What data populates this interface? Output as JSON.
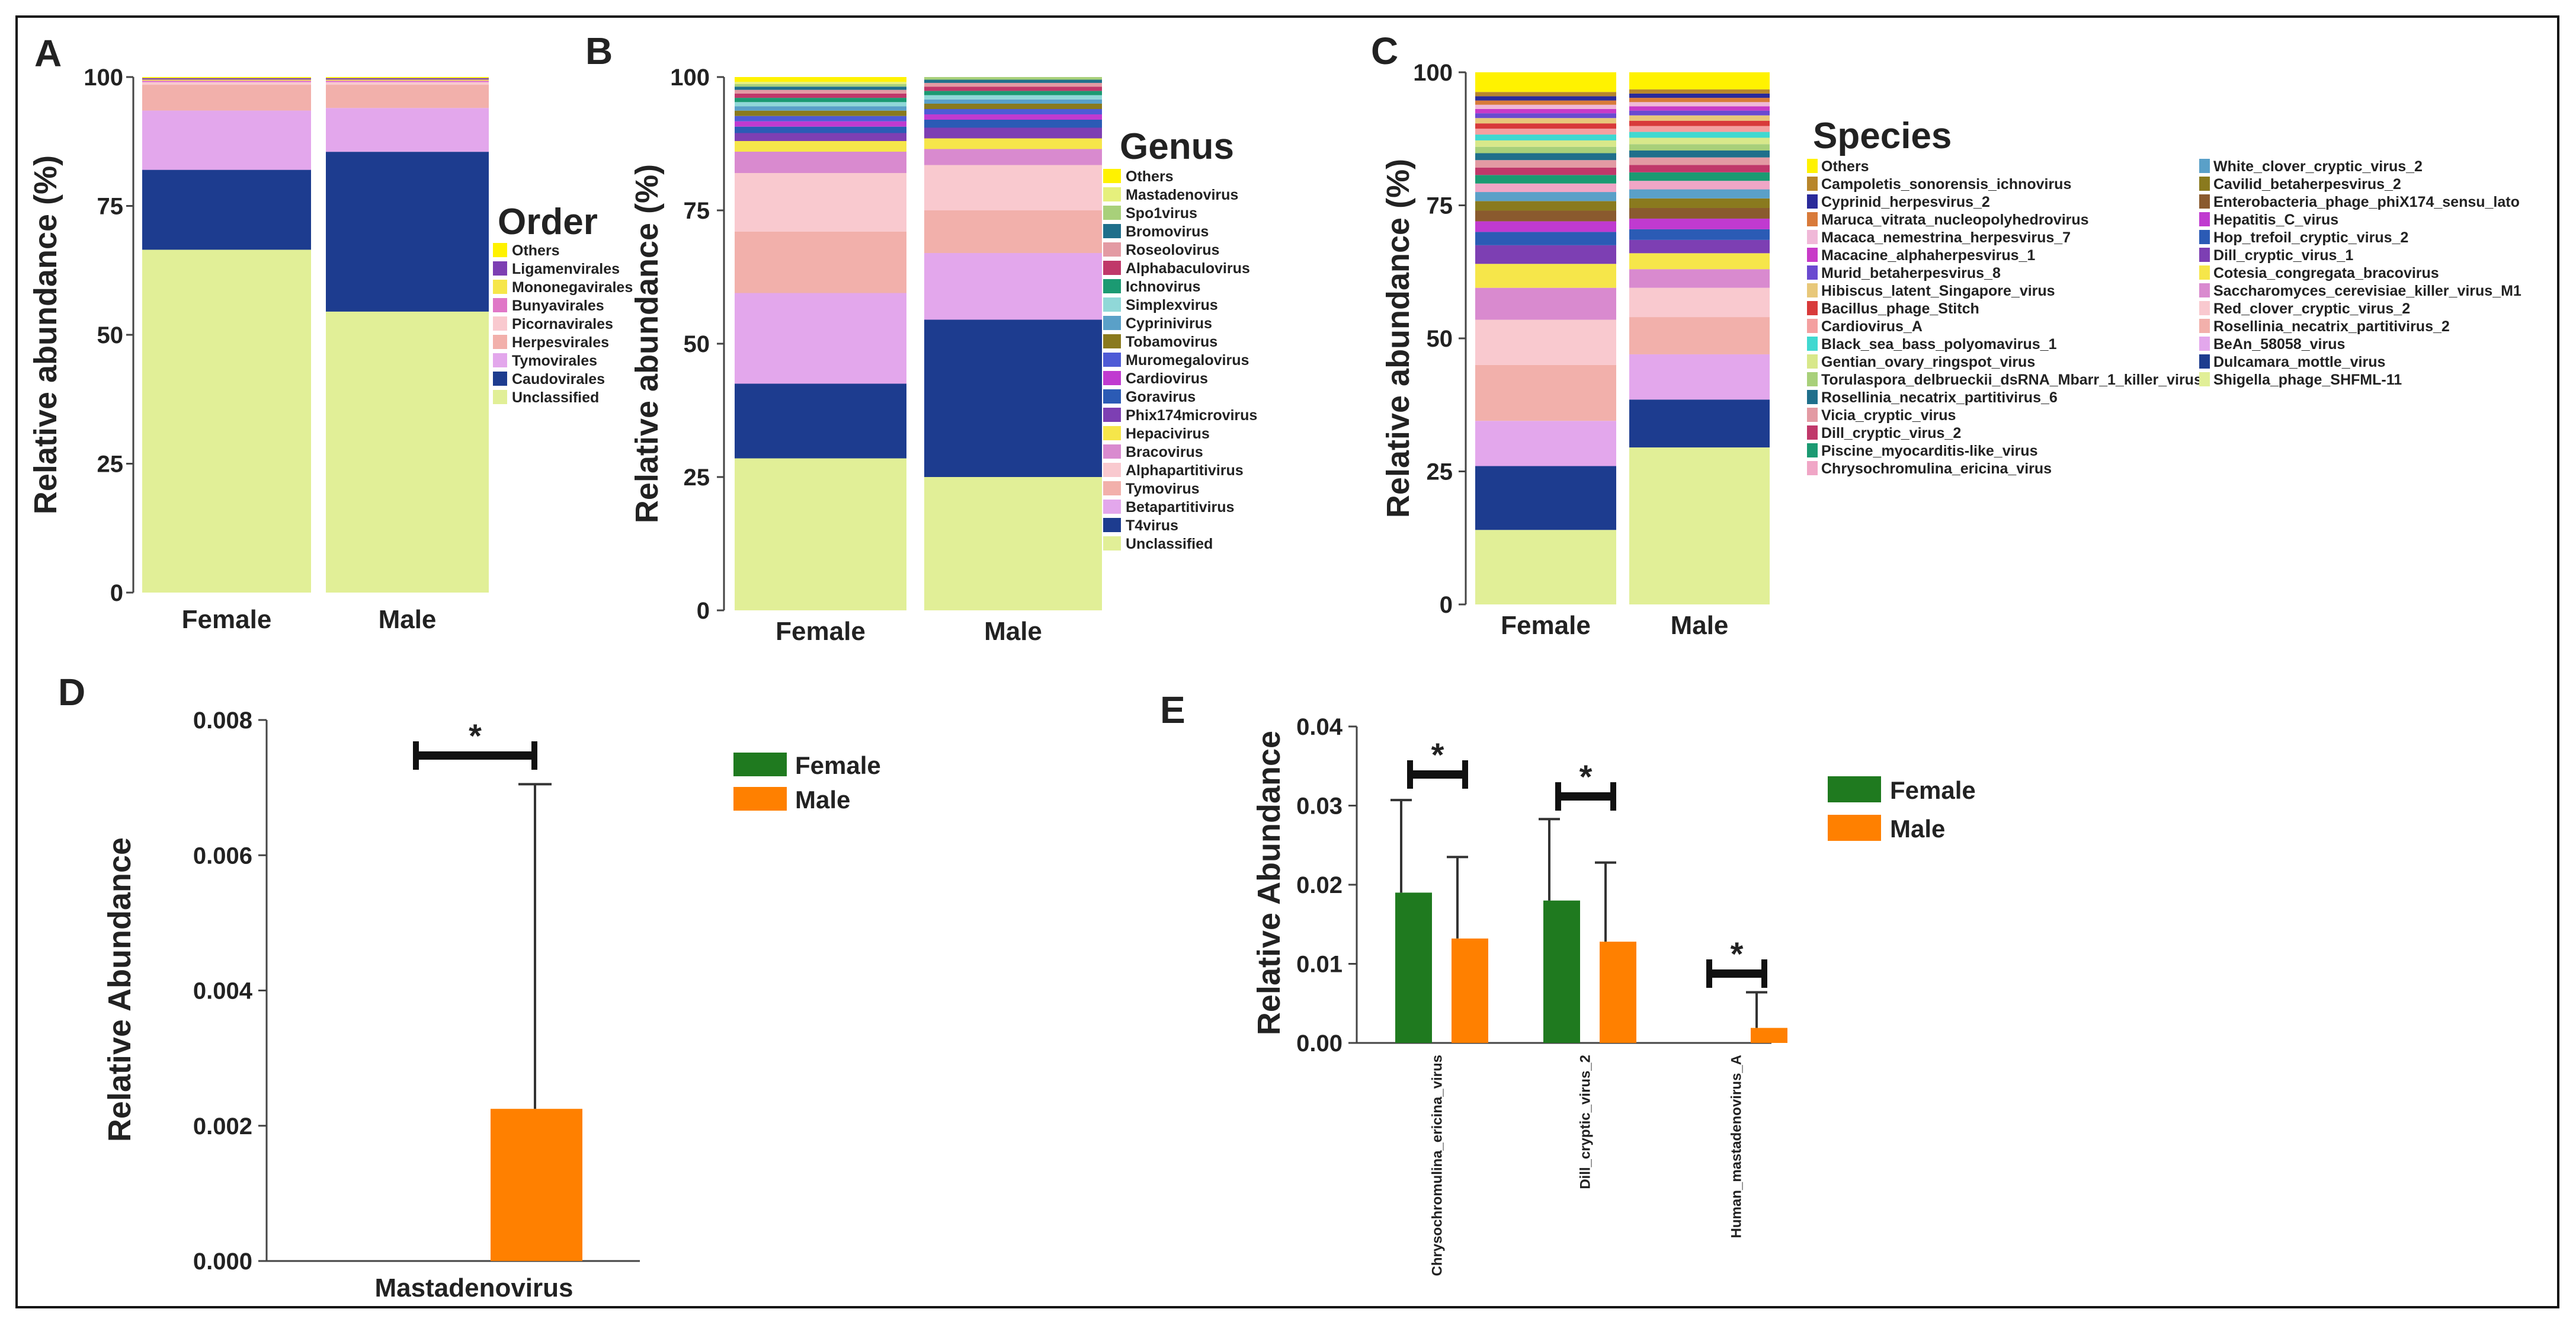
{
  "panels": {
    "A": {
      "letter": "A",
      "ylabel": "Relative abundance (%)",
      "yticks": [
        "0",
        "25",
        "50",
        "75",
        "100"
      ],
      "legend_title": "Order",
      "categories": [
        "Female",
        "Male"
      ]
    },
    "B": {
      "letter": "B",
      "ylabel": "Relative abundance (%)",
      "yticks": [
        "0",
        "25",
        "50",
        "75",
        "100"
      ],
      "legend_title": "Genus",
      "categories": [
        "Female",
        "Male"
      ]
    },
    "C": {
      "letter": "C",
      "ylabel": "Relative abundance (%)",
      "yticks": [
        "0",
        "25",
        "50",
        "75",
        "100"
      ],
      "legend_title": "Species",
      "categories": [
        "Female",
        "Male"
      ]
    },
    "D": {
      "letter": "D",
      "ylabel": "Relative Abundance",
      "yticks": [
        "0.000",
        "0.002",
        "0.004",
        "0.006",
        "0.008"
      ],
      "categories": [
        "Mastadenovirus"
      ],
      "legend": [
        "Female",
        "Male"
      ],
      "sig": "*"
    },
    "E": {
      "letter": "E",
      "ylabel": "Relative Abundance",
      "yticks": [
        "0.00",
        "0.01",
        "0.02",
        "0.03",
        "0.04"
      ],
      "categories": [
        "Chrysochromulina_ericina_virus",
        "Dill_cryptic_virus_2",
        "Human_mastadenovirus_A"
      ],
      "legend": [
        "Female",
        "Male"
      ],
      "sig": "*"
    }
  },
  "chart_data": [
    {
      "panel": "A",
      "type": "bar",
      "stacked": true,
      "title": "",
      "xlabel": "",
      "ylabel": "Relative abundance (%)",
      "ylim": [
        0,
        100
      ],
      "categories": [
        "Female",
        "Male"
      ],
      "series": [
        {
          "name": "Unclassified",
          "color": "#e1ef97",
          "values": [
            66.5,
            54.5
          ]
        },
        {
          "name": "Caudovirales",
          "color": "#1d3c8f",
          "values": [
            15.5,
            31
          ]
        },
        {
          "name": "Tymovirales",
          "color": "#e3a7ec",
          "values": [
            11.5,
            8.5
          ]
        },
        {
          "name": "Herpesvirales",
          "color": "#f2b0ab",
          "values": [
            5,
            4.5
          ]
        },
        {
          "name": "Picornavirales",
          "color": "#f9c9cf",
          "values": [
            0.5,
            0.5
          ]
        },
        {
          "name": "Bunyavirales",
          "color": "#e077c7",
          "values": [
            0.3,
            0.3
          ]
        },
        {
          "name": "Mononegavirales",
          "color": "#f6e64a",
          "values": [
            0.2,
            0.2
          ]
        },
        {
          "name": "Ligamenvirales",
          "color": "#7d3fb3",
          "values": [
            0.3,
            0.3
          ]
        },
        {
          "name": "Others",
          "color": "#fff200",
          "values": [
            0.2,
            0.2
          ]
        }
      ]
    },
    {
      "panel": "B",
      "type": "bar",
      "stacked": true,
      "title": "",
      "xlabel": "",
      "ylabel": "Relative abundance (%)",
      "ylim": [
        0,
        100
      ],
      "categories": [
        "Female",
        "Male"
      ],
      "series": [
        {
          "name": "Unclassified",
          "color": "#e1ef97",
          "values": [
            28.5,
            25
          ]
        },
        {
          "name": "T4virus",
          "color": "#1d3c8f",
          "values": [
            14,
            29.5
          ]
        },
        {
          "name": "Betapartitivirus",
          "color": "#e3a7ec",
          "values": [
            17,
            12.5
          ]
        },
        {
          "name": "Tymovirus",
          "color": "#f2b0ab",
          "values": [
            11.5,
            8
          ]
        },
        {
          "name": "Alphapartitivirus",
          "color": "#f9c9cf",
          "values": [
            11,
            8.5
          ]
        },
        {
          "name": "Bracovirus",
          "color": "#d98acf",
          "values": [
            4,
            3
          ]
        },
        {
          "name": "Hepacivirus",
          "color": "#f6e64a",
          "values": [
            2,
            2
          ]
        },
        {
          "name": "Phix174microvirus",
          "color": "#7d3fb3",
          "values": [
            1.5,
            2
          ]
        },
        {
          "name": "Goravirus",
          "color": "#2b5bb5",
          "values": [
            1.2,
            1.5
          ]
        },
        {
          "name": "Cardiovirus",
          "color": "#c03ad0",
          "values": [
            1,
            1
          ]
        },
        {
          "name": "Muromegalovirus",
          "color": "#4e5bd6",
          "values": [
            1,
            1
          ]
        },
        {
          "name": "Tobamovirus",
          "color": "#8a7a1e",
          "values": [
            1,
            1
          ]
        },
        {
          "name": "Cyprinivirus",
          "color": "#5aa0c8",
          "values": [
            0.8,
            0.8
          ]
        },
        {
          "name": "Simplexvirus",
          "color": "#90d8d8",
          "values": [
            0.8,
            0.8
          ]
        },
        {
          "name": "Ichnovirus",
          "color": "#1b9a72",
          "values": [
            0.8,
            0.8
          ]
        },
        {
          "name": "Alphabaculovirus",
          "color": "#c0386a",
          "values": [
            0.8,
            0.8
          ]
        },
        {
          "name": "Roseolovirus",
          "color": "#e39aa3",
          "values": [
            0.7,
            0.7
          ]
        },
        {
          "name": "Bromovirus",
          "color": "#1f6f8b",
          "values": [
            0.6,
            0.6
          ]
        },
        {
          "name": "Spo1virus",
          "color": "#a8d07a",
          "values": [
            0.5,
            0.5
          ]
        },
        {
          "name": "Mastadenovirus",
          "color": "#e6f07c",
          "values": [
            0.4,
            0.4
          ]
        },
        {
          "name": "Others",
          "color": "#fff200",
          "values": [
            1.1,
            1.1
          ]
        }
      ]
    },
    {
      "panel": "C",
      "type": "bar",
      "stacked": true,
      "title": "",
      "xlabel": "",
      "ylabel": "Relative abundance (%)",
      "ylim": [
        0,
        100
      ],
      "categories": [
        "Female",
        "Male"
      ],
      "series": [
        {
          "name": "Shigella_phage_SHFML-11",
          "color": "#e1ef97",
          "values": [
            14,
            29.5
          ]
        },
        {
          "name": "Dulcamara_mottle_virus",
          "color": "#1d3c8f",
          "values": [
            12,
            9
          ]
        },
        {
          "name": "BeAn_58058_virus",
          "color": "#e3a7ec",
          "values": [
            8.5,
            8.5
          ]
        },
        {
          "name": "Rosellinia_necatrix_partitivirus_2",
          "color": "#f2b0ab",
          "values": [
            10.5,
            7
          ]
        },
        {
          "name": "Red_clover_cryptic_virus_2",
          "color": "#f9c9cf",
          "values": [
            8.5,
            5.5
          ]
        },
        {
          "name": "Saccharomyces_cerevisiae_killer_virus_M1",
          "color": "#d98acf",
          "values": [
            6,
            3.5
          ]
        },
        {
          "name": "Cotesia_congregata_bracovirus",
          "color": "#f6e64a",
          "values": [
            4.5,
            3
          ]
        },
        {
          "name": "Dill_cryptic_virus_1",
          "color": "#7d3fb3",
          "values": [
            3.5,
            2.5
          ]
        },
        {
          "name": "Hop_trefoil_cryptic_virus_2",
          "color": "#2b5bb5",
          "values": [
            2.5,
            2
          ]
        },
        {
          "name": "Hepatitis_C_virus",
          "color": "#c03ad0",
          "values": [
            2,
            2
          ]
        },
        {
          "name": "Enterobacteria_phage_phiX174_sensu_lato",
          "color": "#8a5a2e",
          "values": [
            2,
            2
          ]
        },
        {
          "name": "Cavilid_betaherpesvirus_2",
          "color": "#8a7a1e",
          "values": [
            1.8,
            1.8
          ]
        },
        {
          "name": "White_clover_cryptic_virus_2",
          "color": "#5aa0c8",
          "values": [
            1.7,
            1.7
          ]
        },
        {
          "name": "Chrysochromulina_ericina_virus",
          "color": "#f0a6c6",
          "values": [
            1.6,
            1.6
          ]
        },
        {
          "name": "Piscine_myocarditis-like_virus",
          "color": "#1b9a72",
          "values": [
            1.6,
            1.6
          ]
        },
        {
          "name": "Dill_cryptic_virus_2",
          "color": "#c0386a",
          "values": [
            1.4,
            1.4
          ]
        },
        {
          "name": "Vicia_cryptic_virus",
          "color": "#e39aa3",
          "values": [
            1.4,
            1.4
          ]
        },
        {
          "name": "Rosellinia_necatrix_partitivirus_6",
          "color": "#1f6f8b",
          "values": [
            1.3,
            1.3
          ]
        },
        {
          "name": "Torulaspora_delbrueckii_dsRNA_Mbarr_1_killer_virus",
          "color": "#a8d07a",
          "values": [
            1.2,
            1.2
          ]
        },
        {
          "name": "Gentian_ovary_ringspot_virus",
          "color": "#d8e88a",
          "values": [
            1.2,
            1.2
          ]
        },
        {
          "name": "Black_sea_bass_polyomavirus_1",
          "color": "#40d8d0",
          "values": [
            1.1,
            1.1
          ]
        },
        {
          "name": "Cardiovirus_A",
          "color": "#f4a0a0",
          "values": [
            1.1,
            1.1
          ]
        },
        {
          "name": "Bacillus_phage_Stitch",
          "color": "#d83a3a",
          "values": [
            1,
            1
          ]
        },
        {
          "name": "Hibiscus_latent_Singapore_virus",
          "color": "#e8c87a",
          "values": [
            1,
            1
          ]
        },
        {
          "name": "Murid_betaherpesvirus_8",
          "color": "#6a4ad0",
          "values": [
            0.9,
            0.9
          ]
        },
        {
          "name": "Macacine_alphaherpesvirus_1",
          "color": "#c83ac8",
          "values": [
            0.8,
            0.8
          ]
        },
        {
          "name": "Macaca_nemestrina_herpesvirus_7",
          "color": "#f0b8d8",
          "values": [
            0.8,
            0.8
          ]
        },
        {
          "name": "Maruca_vitrata_nucleopolyhedrovirus",
          "color": "#d87a3a",
          "values": [
            0.8,
            0.8
          ]
        },
        {
          "name": "Cyprinid_herpesvirus_2",
          "color": "#2a2a9a",
          "values": [
            0.8,
            0.8
          ]
        },
        {
          "name": "Campoletis_sonorensis_ichnovirus",
          "color": "#b8862a",
          "values": [
            0.8,
            0.8
          ]
        },
        {
          "name": "Others",
          "color": "#fff200",
          "values": [
            4.5,
            5.2
          ]
        }
      ]
    },
    {
      "panel": "D",
      "type": "bar",
      "title": "",
      "xlabel": "",
      "ylabel": "Relative Abundance",
      "ylim": [
        0,
        0.008
      ],
      "categories": [
        "Mastadenovirus"
      ],
      "series": [
        {
          "name": "Female",
          "color": "#1f7a1f",
          "values": [
            0
          ],
          "error": [
            0
          ]
        },
        {
          "name": "Male",
          "color": "#ff8000",
          "values": [
            0.00225
          ],
          "error": [
            0.0048
          ]
        }
      ]
    },
    {
      "panel": "E",
      "type": "bar",
      "title": "",
      "xlabel": "",
      "ylabel": "Relative Abundance",
      "ylim": [
        0,
        0.04
      ],
      "categories": [
        "Chrysochromulina_ericina_virus",
        "Dill_cryptic_virus_2",
        "Human_mastadenovirus_A"
      ],
      "series": [
        {
          "name": "Female",
          "color": "#1f7a1f",
          "values": [
            0.019,
            0.018,
            0
          ],
          "error": [
            0.0117,
            0.0103,
            0
          ]
        },
        {
          "name": "Male",
          "color": "#ff8000",
          "values": [
            0.0132,
            0.0128,
            0.0019
          ],
          "error": [
            0.0103,
            0.01,
            0.0045
          ]
        }
      ]
    }
  ]
}
